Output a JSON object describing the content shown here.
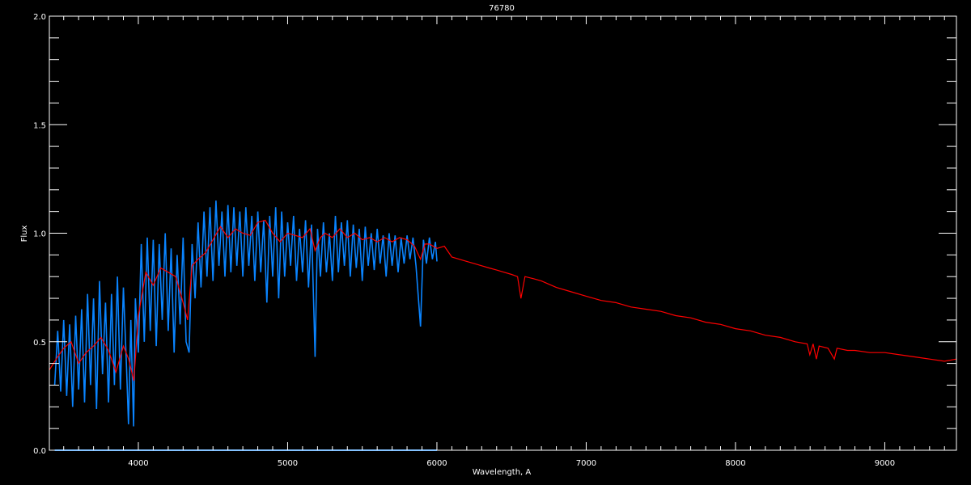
{
  "chart_data": {
    "type": "line",
    "title": "76780",
    "xlabel": "Wavelength, A",
    "ylabel": "Flux",
    "xlim": [
      3404,
      9480
    ],
    "ylim": [
      0,
      2.0
    ],
    "xticks": [
      4000,
      5000,
      6000,
      7000,
      8000,
      9000
    ],
    "xtick_labels": [
      "4000",
      "5000",
      "6000",
      "7000",
      "8000",
      "9000"
    ],
    "yticks": [
      0,
      0.5,
      1.0,
      1.5,
      2.0
    ],
    "ytick_labels": [
      "0.0",
      "0.5",
      "1.0",
      "1.5",
      "2.0"
    ],
    "grid": false,
    "colors": {
      "background": "#000000",
      "axes": "#ffffff",
      "observed": "#0a84ff",
      "model": "#ff0000"
    },
    "series": [
      {
        "color": "#0a84ff",
        "x": [
          3440,
          3460,
          3480,
          3500,
          3520,
          3540,
          3560,
          3580,
          3600,
          3620,
          3640,
          3660,
          3680,
          3700,
          3720,
          3740,
          3760,
          3780,
          3800,
          3820,
          3840,
          3860,
          3880,
          3900,
          3920,
          3934,
          3950,
          3968,
          3980,
          4000,
          4020,
          4040,
          4060,
          4080,
          4100,
          4120,
          4140,
          4160,
          4180,
          4200,
          4220,
          4240,
          4260,
          4280,
          4300,
          4320,
          4340,
          4360,
          4380,
          4400,
          4420,
          4440,
          4460,
          4480,
          4500,
          4520,
          4540,
          4560,
          4580,
          4600,
          4620,
          4640,
          4660,
          4680,
          4700,
          4720,
          4740,
          4760,
          4780,
          4800,
          4820,
          4840,
          4861,
          4880,
          4900,
          4920,
          4940,
          4960,
          4980,
          5000,
          5020,
          5040,
          5060,
          5080,
          5100,
          5120,
          5140,
          5160,
          5184,
          5200,
          5220,
          5240,
          5260,
          5280,
          5300,
          5320,
          5340,
          5360,
          5380,
          5400,
          5420,
          5440,
          5460,
          5480,
          5500,
          5520,
          5540,
          5560,
          5580,
          5600,
          5620,
          5640,
          5660,
          5680,
          5700,
          5720,
          5740,
          5760,
          5780,
          5800,
          5820,
          5840,
          5860,
          5890,
          5910,
          5930,
          5950,
          5970,
          5990,
          6000
        ],
        "y": [
          0.3,
          0.55,
          0.27,
          0.6,
          0.25,
          0.58,
          0.2,
          0.62,
          0.28,
          0.65,
          0.22,
          0.72,
          0.3,
          0.7,
          0.19,
          0.78,
          0.35,
          0.68,
          0.22,
          0.72,
          0.3,
          0.8,
          0.28,
          0.75,
          0.4,
          0.12,
          0.6,
          0.11,
          0.7,
          0.45,
          0.95,
          0.5,
          0.98,
          0.55,
          0.97,
          0.48,
          0.95,
          0.6,
          1.0,
          0.55,
          0.93,
          0.45,
          0.9,
          0.58,
          0.98,
          0.5,
          0.45,
          0.95,
          0.7,
          1.05,
          0.75,
          1.1,
          0.8,
          1.12,
          0.78,
          1.15,
          0.85,
          1.1,
          0.8,
          1.13,
          0.82,
          1.12,
          0.85,
          1.1,
          0.8,
          1.12,
          0.85,
          1.08,
          0.78,
          1.1,
          0.82,
          1.06,
          0.68,
          1.08,
          0.8,
          1.12,
          0.7,
          1.1,
          0.8,
          1.05,
          0.85,
          1.08,
          0.78,
          1.02,
          0.82,
          1.06,
          0.75,
          1.04,
          0.43,
          1.02,
          0.8,
          1.05,
          0.82,
          1.0,
          0.78,
          1.08,
          0.82,
          1.05,
          0.85,
          1.06,
          0.8,
          1.04,
          0.84,
          1.02,
          0.78,
          1.03,
          0.85,
          1.0,
          0.83,
          1.02,
          0.86,
          0.99,
          0.8,
          1.0,
          0.85,
          0.99,
          0.82,
          0.98,
          0.86,
          0.99,
          0.88,
          0.98,
          0.85,
          0.57,
          0.97,
          0.86,
          0.98,
          0.88,
          0.96,
          0.87
        ]
      },
      {
        "color": "#ff0000",
        "x": [
          3404,
          3450,
          3500,
          3550,
          3600,
          3650,
          3700,
          3750,
          3800,
          3850,
          3900,
          3935,
          3970,
          4000,
          4050,
          4100,
          4150,
          4200,
          4250,
          4300,
          4330,
          4360,
          4400,
          4450,
          4500,
          4550,
          4600,
          4650,
          4700,
          4750,
          4800,
          4850,
          4900,
          4950,
          5000,
          5050,
          5100,
          5150,
          5184,
          5220,
          5250,
          5300,
          5350,
          5400,
          5450,
          5500,
          5550,
          5600,
          5650,
          5700,
          5750,
          5800,
          5850,
          5890,
          5920,
          5950,
          6000,
          6050,
          6100,
          6150,
          6200,
          6250,
          6300,
          6350,
          6400,
          6450,
          6500,
          6540,
          6563,
          6590,
          6650,
          6700,
          6800,
          6900,
          7000,
          7100,
          7200,
          7300,
          7400,
          7500,
          7600,
          7700,
          7800,
          7900,
          8000,
          8100,
          8200,
          8300,
          8400,
          8480,
          8498,
          8520,
          8542,
          8560,
          8620,
          8662,
          8680,
          8750,
          8800,
          8900,
          9000,
          9100,
          9200,
          9300,
          9400,
          9480
        ],
        "y": [
          0.37,
          0.42,
          0.47,
          0.5,
          0.4,
          0.45,
          0.48,
          0.52,
          0.46,
          0.36,
          0.48,
          0.42,
          0.32,
          0.62,
          0.82,
          0.76,
          0.84,
          0.82,
          0.8,
          0.68,
          0.6,
          0.85,
          0.88,
          0.91,
          0.97,
          1.03,
          0.98,
          1.02,
          1.0,
          0.99,
          1.05,
          1.06,
          1.0,
          0.96,
          1.0,
          0.99,
          0.98,
          1.02,
          0.92,
          0.98,
          1.0,
          0.98,
          1.02,
          0.98,
          1.0,
          0.97,
          0.98,
          0.96,
          0.98,
          0.96,
          0.98,
          0.97,
          0.94,
          0.88,
          0.95,
          0.95,
          0.93,
          0.94,
          0.89,
          0.88,
          0.87,
          0.86,
          0.85,
          0.84,
          0.83,
          0.82,
          0.81,
          0.8,
          0.7,
          0.8,
          0.79,
          0.78,
          0.75,
          0.73,
          0.71,
          0.69,
          0.68,
          0.66,
          0.65,
          0.64,
          0.62,
          0.61,
          0.59,
          0.58,
          0.56,
          0.55,
          0.53,
          0.52,
          0.5,
          0.49,
          0.44,
          0.49,
          0.42,
          0.48,
          0.47,
          0.42,
          0.47,
          0.46,
          0.46,
          0.45,
          0.45,
          0.44,
          0.43,
          0.42,
          0.41,
          0.42
        ]
      },
      {
        "color": "#0a84ff",
        "x": [
          3440,
          6000
        ],
        "y": [
          0.0,
          0.0
        ]
      }
    ]
  }
}
